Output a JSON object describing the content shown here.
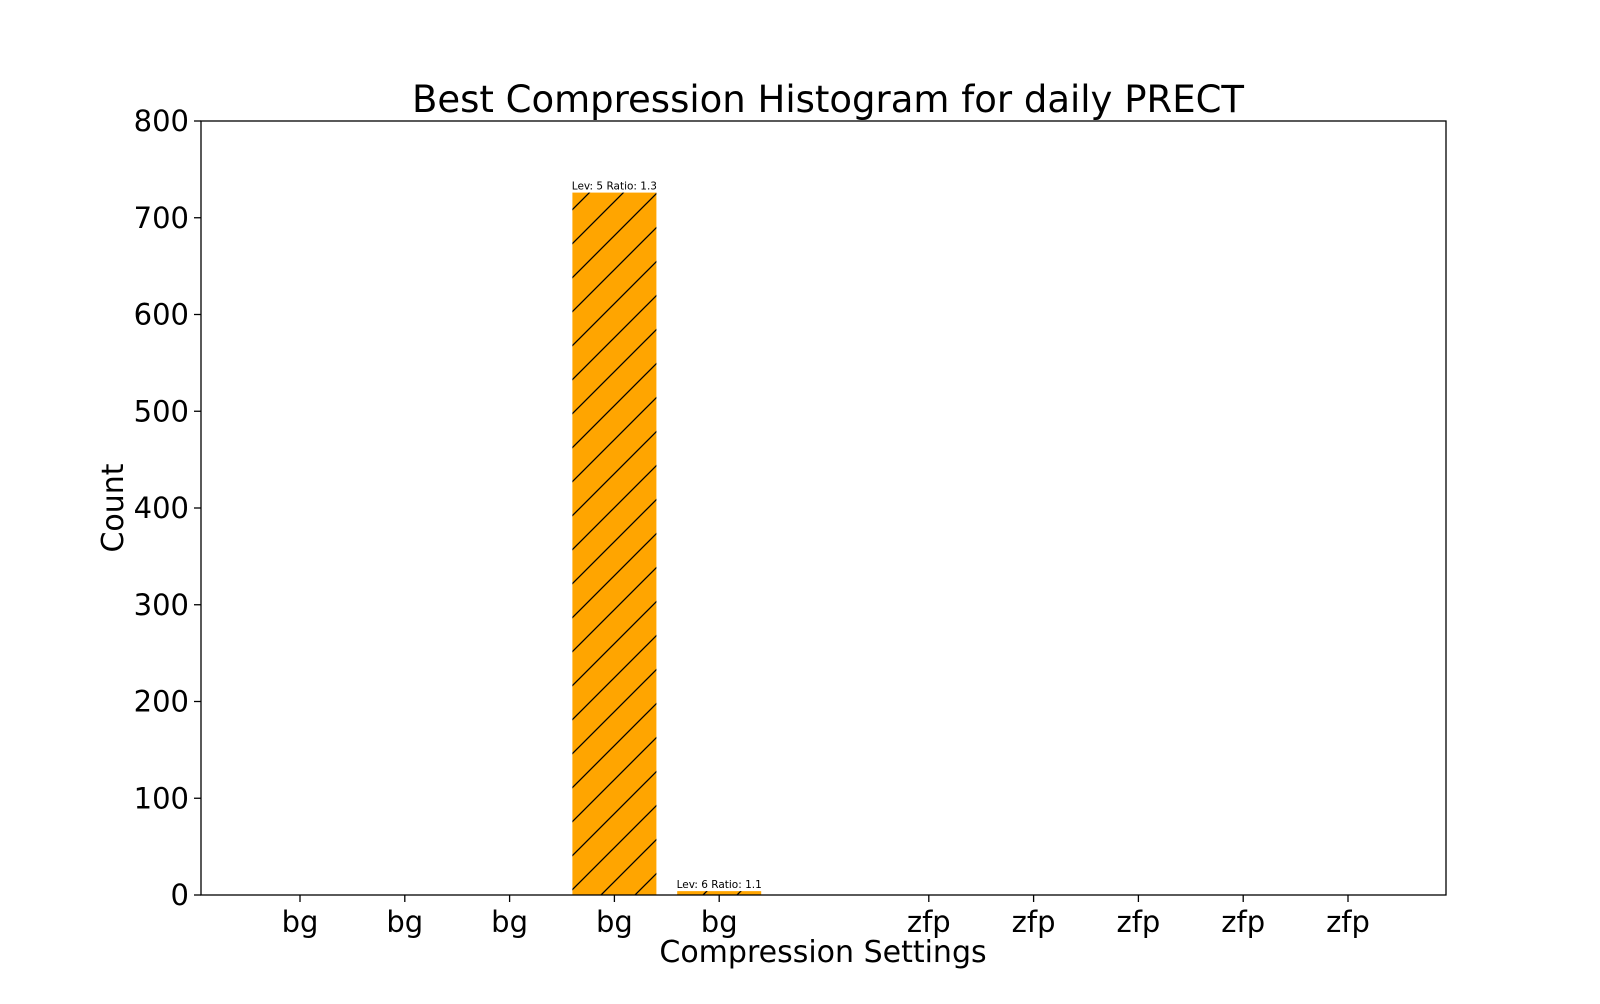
{
  "chart_data": {
    "type": "bar",
    "title": "Best Compression Histogram for daily PRECT",
    "xlabel": "Compression Settings",
    "ylabel": "Count",
    "ylim": [
      0,
      800
    ],
    "yticks": [
      0,
      100,
      200,
      300,
      400,
      500,
      600,
      700,
      800
    ],
    "grid": false,
    "legend": "none",
    "categories": [
      "bg",
      "bg",
      "bg",
      "bg",
      "bg",
      "zfp",
      "zfp",
      "zfp",
      "zfp",
      "zfp"
    ],
    "slot_index": [
      0,
      1,
      2,
      3,
      4,
      6,
      7,
      8,
      9,
      10
    ],
    "values": [
      0,
      0,
      0,
      726,
      4,
      0,
      0,
      0,
      0,
      0
    ],
    "bar_labels": [
      "",
      "",
      "",
      "Lev: 5 Ratio: 1.3",
      "Lev: 6 Ratio: 1.1",
      "",
      "",
      "",
      "",
      ""
    ],
    "bar_color": "#FFA500",
    "hatch": "/"
  }
}
